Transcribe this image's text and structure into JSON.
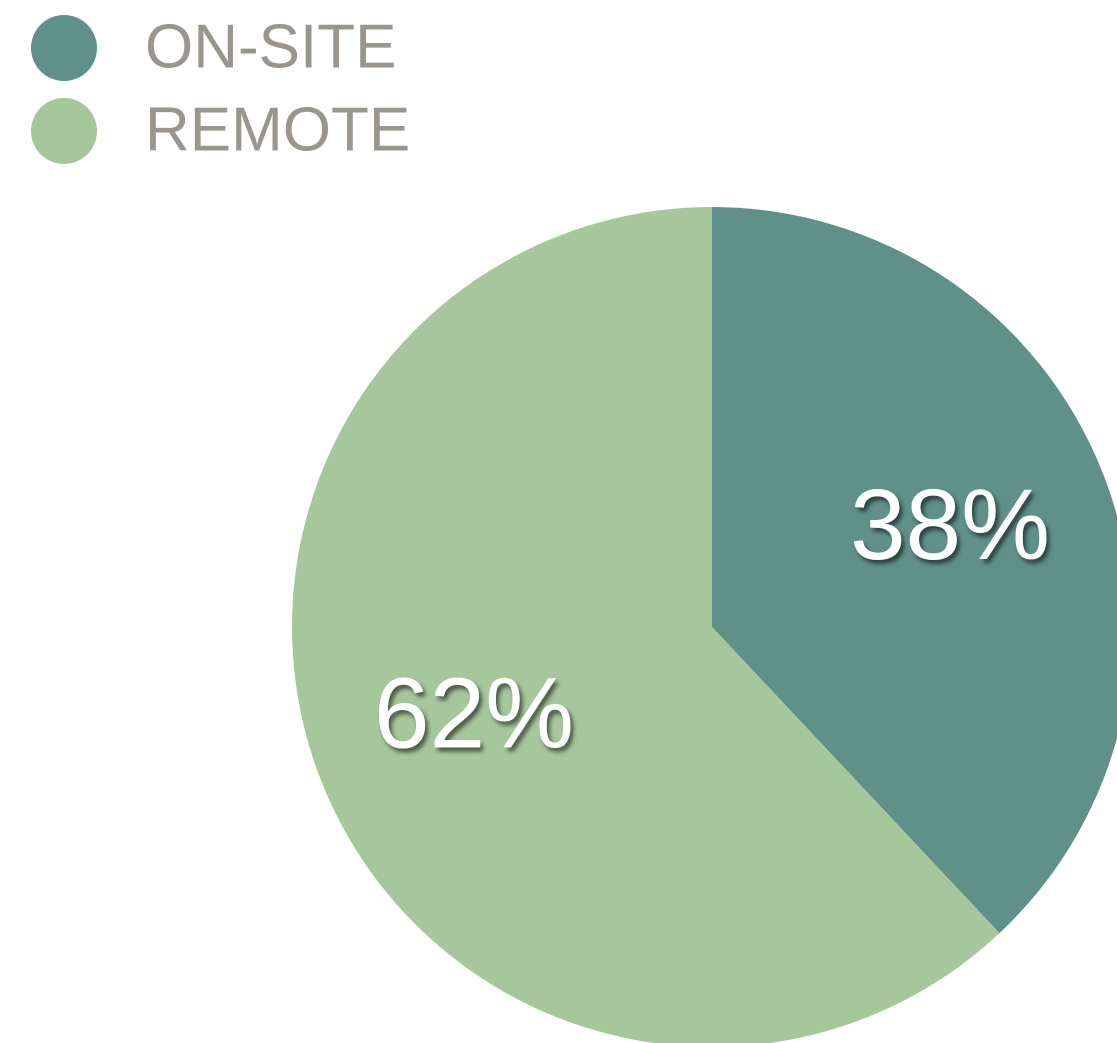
{
  "chart_data": {
    "type": "pie",
    "categories": [
      "ON-SITE",
      "REMOTE"
    ],
    "values": [
      38,
      62
    ],
    "value_labels": [
      "38%",
      "62%"
    ],
    "colors": [
      "#5f9189",
      "#a6c69b"
    ],
    "legend": "top-left"
  }
}
